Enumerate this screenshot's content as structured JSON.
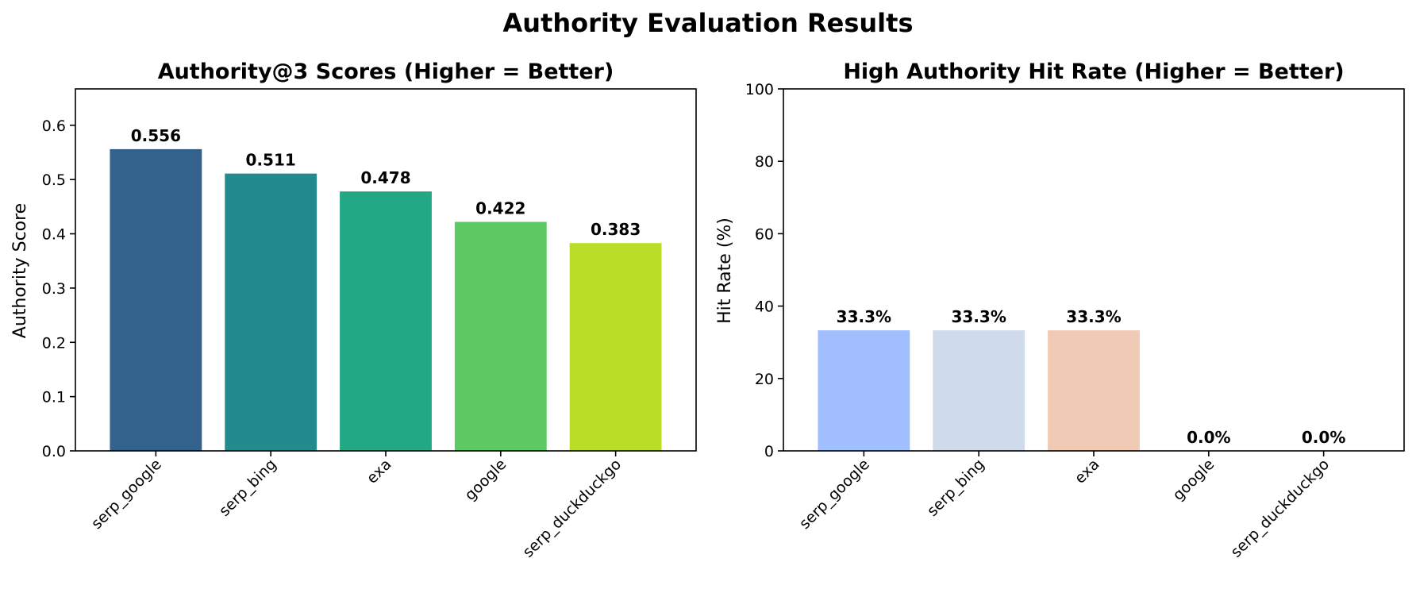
{
  "figure_title": "Authority Evaluation Results",
  "chart_data": [
    {
      "type": "bar",
      "title": "Authority@3 Scores (Higher = Better)",
      "xlabel": "",
      "ylabel": "Authority Score",
      "categories": [
        "serp_google",
        "serp_bing",
        "exa",
        "google",
        "serp_duckduckgo"
      ],
      "values": [
        0.556,
        0.511,
        0.478,
        0.422,
        0.383
      ],
      "value_labels": [
        "0.556",
        "0.511",
        "0.478",
        "0.422",
        "0.383"
      ],
      "colors": [
        "#33638d",
        "#238a8d",
        "#22a884",
        "#5ec962",
        "#bade28"
      ],
      "ylim": [
        0,
        0.667
      ],
      "yticks": [
        0.0,
        0.1,
        0.2,
        0.3,
        0.4,
        0.5,
        0.6
      ],
      "ytick_labels": [
        "0.0",
        "0.1",
        "0.2",
        "0.3",
        "0.4",
        "0.5",
        "0.6"
      ],
      "grid": false,
      "legend": "none"
    },
    {
      "type": "bar",
      "title": "High Authority Hit Rate (Higher = Better)",
      "xlabel": "",
      "ylabel": "Hit Rate (%)",
      "categories": [
        "serp_google",
        "serp_bing",
        "exa",
        "google",
        "serp_duckduckgo"
      ],
      "values": [
        33.3,
        33.3,
        33.3,
        0.0,
        0.0
      ],
      "value_labels": [
        "33.3%",
        "33.3%",
        "33.3%",
        "0.0%",
        "0.0%"
      ],
      "colors": [
        "#a1beff",
        "#cfdaea",
        "#f0cab5",
        "#ee8468",
        "#b40426"
      ],
      "ylim": [
        0,
        100
      ],
      "yticks": [
        0,
        20,
        40,
        60,
        80,
        100
      ],
      "ytick_labels": [
        "0",
        "20",
        "40",
        "60",
        "80",
        "100"
      ],
      "grid": false,
      "legend": "none"
    }
  ]
}
